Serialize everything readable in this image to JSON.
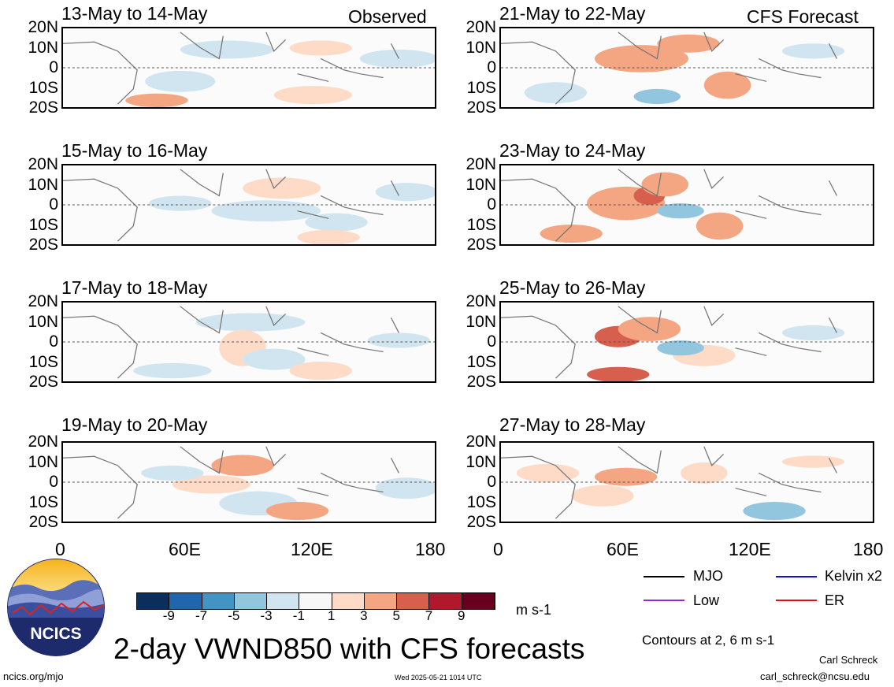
{
  "panels": [
    {
      "title": "13-May to 14-May",
      "tag": "Observed",
      "column": "left",
      "row": 0
    },
    {
      "title": "15-May to 16-May",
      "tag": "",
      "column": "left",
      "row": 1
    },
    {
      "title": "17-May to 18-May",
      "tag": "",
      "column": "left",
      "row": 2
    },
    {
      "title": "19-May to 20-May",
      "tag": "",
      "column": "left",
      "row": 3
    },
    {
      "title": "21-May to 22-May",
      "tag": "CFS Forecast",
      "column": "right",
      "row": 0
    },
    {
      "title": "23-May to 24-May",
      "tag": "",
      "column": "right",
      "row": 1
    },
    {
      "title": "25-May to 26-May",
      "tag": "",
      "column": "right",
      "row": 2
    },
    {
      "title": "27-May to 28-May",
      "tag": "",
      "column": "right",
      "row": 3
    }
  ],
  "lat_labels": [
    "20N",
    "10N",
    "0",
    "10S",
    "20S"
  ],
  "lon_labels": [
    "0",
    "60E",
    "120E",
    "180"
  ],
  "colorbar": {
    "labels": [
      "-9",
      "-7",
      "-5",
      "-3",
      "-1",
      "1",
      "3",
      "5",
      "7",
      "9"
    ],
    "colors": [
      "#0b2f5c",
      "#2166ac",
      "#4393c3",
      "#92c5de",
      "#d1e5f0",
      "#f7f7f7",
      "#fddbc7",
      "#f4a582",
      "#d6604d",
      "#b2182b",
      "#67001f"
    ],
    "units": "m s-1"
  },
  "legend": {
    "items": [
      {
        "label": "MJO",
        "color": "#000000"
      },
      {
        "label": "Kelvin x2",
        "color": "#1010d0"
      },
      {
        "label": "Low",
        "color": "#8a2be2"
      },
      {
        "label": "ER",
        "color": "#e01010"
      }
    ],
    "contours_note": "Contours at 2, 6 m s-1"
  },
  "logo": {
    "text": "NCICS"
  },
  "title": "2-day VWND850 with CFS forecasts",
  "footer": {
    "left": "ncics.org/mjo",
    "center": "Wed 2025-05-21 1014 UTC",
    "author": "Carl Schreck",
    "email": "carl_schreck@ncsu.edu"
  }
}
